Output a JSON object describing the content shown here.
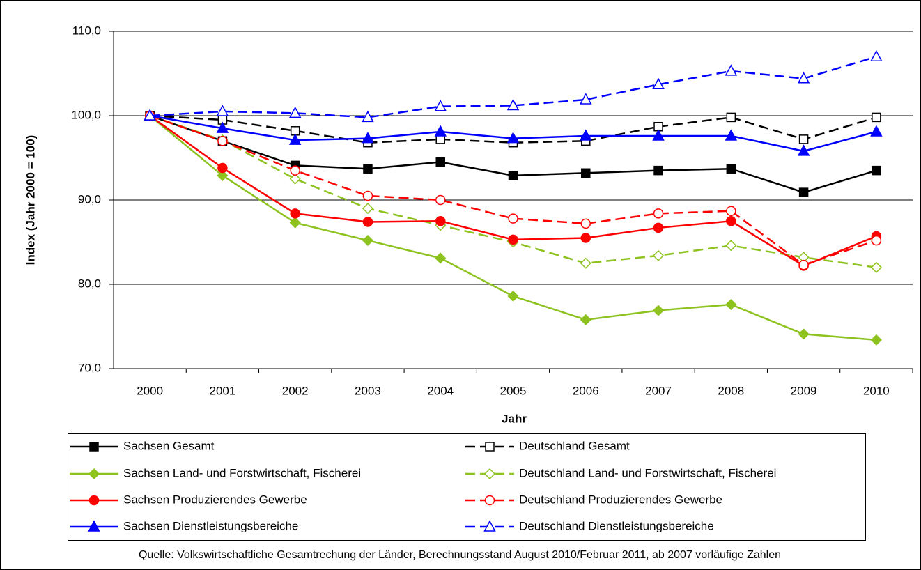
{
  "chart_data": {
    "type": "line",
    "x_label": "Jahr",
    "y_label": "Index (Jahr 2000 = 100)",
    "source": "Quelle: Volkswirtschaftliche Gesamtrechung der Länder, Berechnungsstand August 2010/Februar 2011, ab 2007 vorläufige Zahlen",
    "categories": [
      "2000",
      "2001",
      "2002",
      "2003",
      "2004",
      "2005",
      "2006",
      "2007",
      "2008",
      "2009",
      "2010"
    ],
    "ylim": [
      70,
      110
    ],
    "yticks": [
      {
        "value": 70,
        "label": "70,0"
      },
      {
        "value": 80,
        "label": "80,0"
      },
      {
        "value": 90,
        "label": "90,0"
      },
      {
        "value": 100,
        "label": "100,0"
      },
      {
        "value": 110,
        "label": "110,0"
      }
    ],
    "grid": true,
    "series": [
      {
        "name": "Sachsen Gesamt",
        "color": "#000000",
        "marker": "square",
        "filled": true,
        "dashed": false,
        "values": [
          100,
          97.0,
          94.1,
          93.7,
          94.5,
          92.9,
          93.2,
          93.5,
          93.7,
          90.9,
          93.5
        ]
      },
      {
        "name": "Deutschland Gesamt",
        "color": "#000000",
        "marker": "square",
        "filled": false,
        "dashed": true,
        "values": [
          100,
          99.5,
          98.2,
          96.8,
          97.2,
          96.8,
          97.0,
          98.7,
          99.8,
          97.2,
          99.8
        ]
      },
      {
        "name": "Sachsen Land- und Forstwirtschaft, Fischerei",
        "color": "#8dc21f",
        "marker": "diamond",
        "filled": true,
        "dashed": false,
        "values": [
          100,
          92.9,
          87.3,
          85.2,
          83.1,
          78.6,
          75.8,
          76.9,
          77.6,
          74.1,
          73.4
        ]
      },
      {
        "name": "Deutschland Land- und Forstwirtschaft, Fischerei",
        "color": "#8dc21f",
        "marker": "diamond",
        "filled": false,
        "dashed": true,
        "values": [
          100,
          97.1,
          92.5,
          89.0,
          87.0,
          85.0,
          82.5,
          83.4,
          84.6,
          83.2,
          82.0
        ]
      },
      {
        "name": "Sachsen Produzierendes Gewerbe",
        "color": "#ff0000",
        "marker": "circle",
        "filled": true,
        "dashed": false,
        "values": [
          100,
          93.8,
          88.4,
          87.4,
          87.5,
          85.3,
          85.5,
          86.7,
          87.5,
          82.2,
          85.7
        ]
      },
      {
        "name": "Deutschland Produzierendes Gewerbe",
        "color": "#ff0000",
        "marker": "circle",
        "filled": false,
        "dashed": true,
        "values": [
          100,
          97.0,
          93.5,
          90.5,
          90.0,
          87.8,
          87.2,
          88.4,
          88.7,
          82.3,
          85.2
        ]
      },
      {
        "name": "Sachsen Dienstleistungsbereiche",
        "color": "#0000ff",
        "marker": "triangle",
        "filled": true,
        "dashed": false,
        "values": [
          100,
          98.5,
          97.1,
          97.3,
          98.1,
          97.3,
          97.6,
          97.6,
          97.6,
          95.8,
          98.1
        ]
      },
      {
        "name": "Deutschland Dienstleistungsbereiche",
        "color": "#0000ff",
        "marker": "triangle",
        "filled": false,
        "dashed": true,
        "values": [
          100,
          100.5,
          100.3,
          99.8,
          101.1,
          101.2,
          101.9,
          103.7,
          105.3,
          104.4,
          107.0
        ]
      }
    ]
  }
}
